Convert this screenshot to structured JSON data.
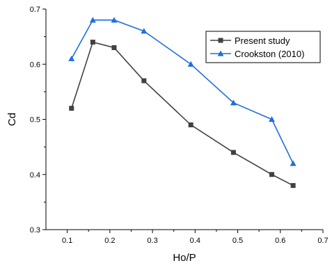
{
  "chart_data": {
    "type": "line",
    "xlabel": "Ho/P",
    "ylabel": "Cd",
    "xlim": [
      0.05,
      0.7
    ],
    "ylim": [
      0.3,
      0.7
    ],
    "x_ticks": [
      "0.1",
      "0.2",
      "0.3",
      "0.4",
      "0.5",
      "0.6",
      "0.7"
    ],
    "y_ticks": [
      "0.3",
      "0.4",
      "0.5",
      "0.6",
      "0.7"
    ],
    "grid": false,
    "legend_position": "top-right",
    "series": [
      {
        "name": "Present study",
        "color": "#404040",
        "marker": "square",
        "x": [
          0.11,
          0.16,
          0.21,
          0.28,
          0.39,
          0.49,
          0.58,
          0.63
        ],
        "y": [
          0.52,
          0.64,
          0.63,
          0.57,
          0.49,
          0.44,
          0.4,
          0.38
        ]
      },
      {
        "name": "Crookston (2010)",
        "color": "#1f6fdc",
        "marker": "triangle",
        "x": [
          0.11,
          0.16,
          0.21,
          0.28,
          0.39,
          0.49,
          0.58,
          0.63
        ],
        "y": [
          0.61,
          0.68,
          0.68,
          0.66,
          0.6,
          0.53,
          0.5,
          0.42
        ]
      }
    ]
  }
}
